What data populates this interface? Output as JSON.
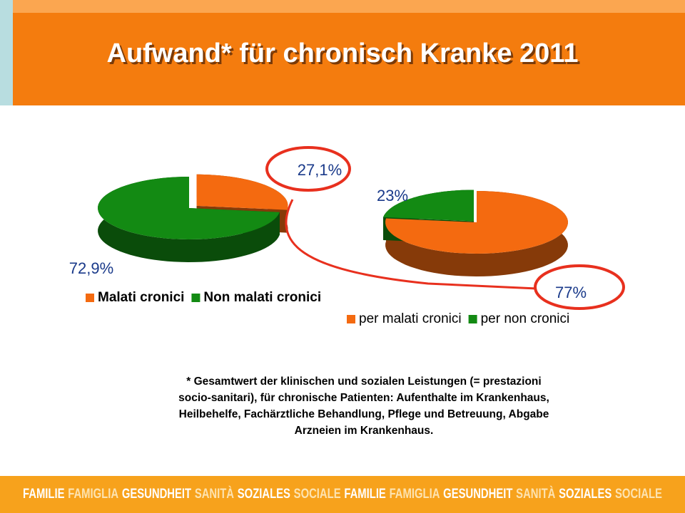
{
  "title": "Aufwand* für chronisch Kranke 2011",
  "chart_data": [
    {
      "type": "pie",
      "categories": [
        "Malati cronici",
        "Non malati cronici"
      ],
      "values": [
        27.1,
        72.9
      ],
      "value_labels": [
        "27,1%",
        "72,9%"
      ],
      "colors": [
        "#f46a10",
        "#138a13"
      ]
    },
    {
      "type": "pie",
      "categories": [
        "per malati cronici",
        "per non cronici"
      ],
      "values": [
        77,
        23
      ],
      "value_labels": [
        "77%",
        "23%"
      ],
      "colors": [
        "#f46a10",
        "#138a13"
      ]
    }
  ],
  "footnote": [
    "* Gesamtwert der klinischen und sozialen Leistungen (= prestazioni",
    "socio-sanitari), für chronische Patienten: Aufenthalte im Krankenhaus,",
    "Heilbehelfe, Fachärztliche Behandlung, Pflege und Betreuung, Abgabe",
    "Arzneien im Krankenhaus."
  ],
  "footer": [
    "FAMILIE",
    "FAMIGLIA",
    "GESUNDHEIT",
    "SANITÀ",
    "SOZIALES",
    "SOCIALE",
    "FAMILIE",
    "FAMIGLIA",
    "GESUNDHEIT",
    "SANITÀ",
    "SOZIALES",
    "SOCIALE"
  ]
}
